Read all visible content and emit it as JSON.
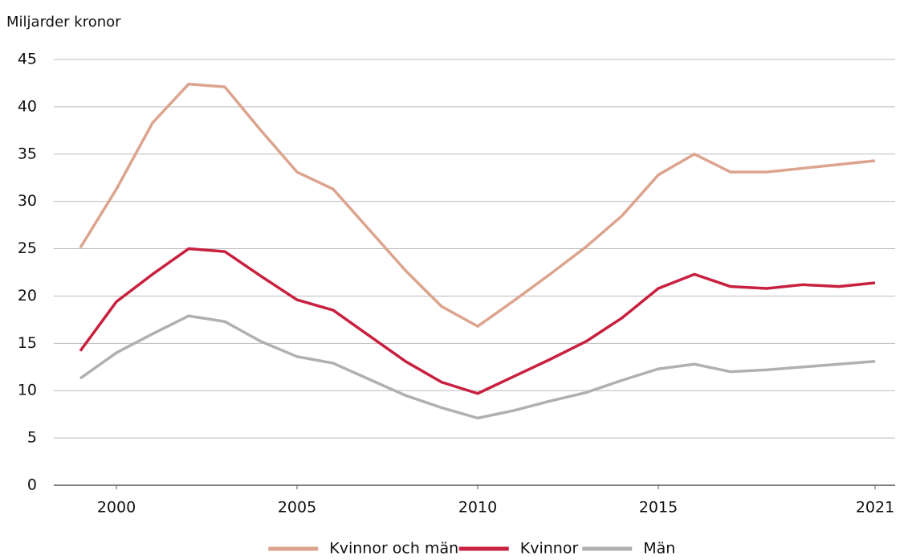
{
  "chart_data": {
    "type": "line",
    "y_label": "Miljarder kronor",
    "x": [
      1999,
      2000,
      2001,
      2002,
      2003,
      2004,
      2005,
      2006,
      2007,
      2008,
      2009,
      2010,
      2011,
      2012,
      2013,
      2014,
      2015,
      2016,
      2017,
      2018,
      2019,
      2020,
      2021
    ],
    "series": [
      {
        "name": "Kvinnor och män",
        "color": "#dca48e",
        "values": [
          25.1,
          31.3,
          38.3,
          42.4,
          42.1,
          37.5,
          33.1,
          31.3,
          27.0,
          22.7,
          18.9,
          16.8,
          19.5,
          22.3,
          25.2,
          28.5,
          32.8,
          35.0,
          33.1,
          33.1,
          33.5,
          33.9,
          34.3
        ]
      },
      {
        "name": "Kvinnor",
        "color": "#c8203f",
        "values": [
          14.2,
          19.4,
          22.3,
          25.0,
          24.7,
          22.1,
          19.6,
          18.5,
          15.8,
          13.1,
          10.9,
          9.7,
          11.5,
          13.3,
          15.2,
          17.7,
          20.8,
          22.3,
          21.0,
          20.8,
          21.2,
          21.0,
          21.4
        ]
      },
      {
        "name": "Män",
        "color": "#b0b0b0",
        "values": [
          11.3,
          14.0,
          16.0,
          17.9,
          17.3,
          15.2,
          13.6,
          12.9,
          11.2,
          9.5,
          8.2,
          7.1,
          7.9,
          8.9,
          9.8,
          11.1,
          12.3,
          12.8,
          12.0,
          12.2,
          12.5,
          12.8,
          13.1
        ]
      }
    ],
    "xlim": [
      1999,
      2021
    ],
    "xticks": [
      2000,
      2005,
      2010,
      2015,
      2021
    ],
    "ylim": [
      0,
      45
    ],
    "yticks": [
      0,
      5,
      10,
      15,
      20,
      25,
      30,
      35,
      40,
      45
    ],
    "grid": true,
    "legend": "bottom"
  }
}
